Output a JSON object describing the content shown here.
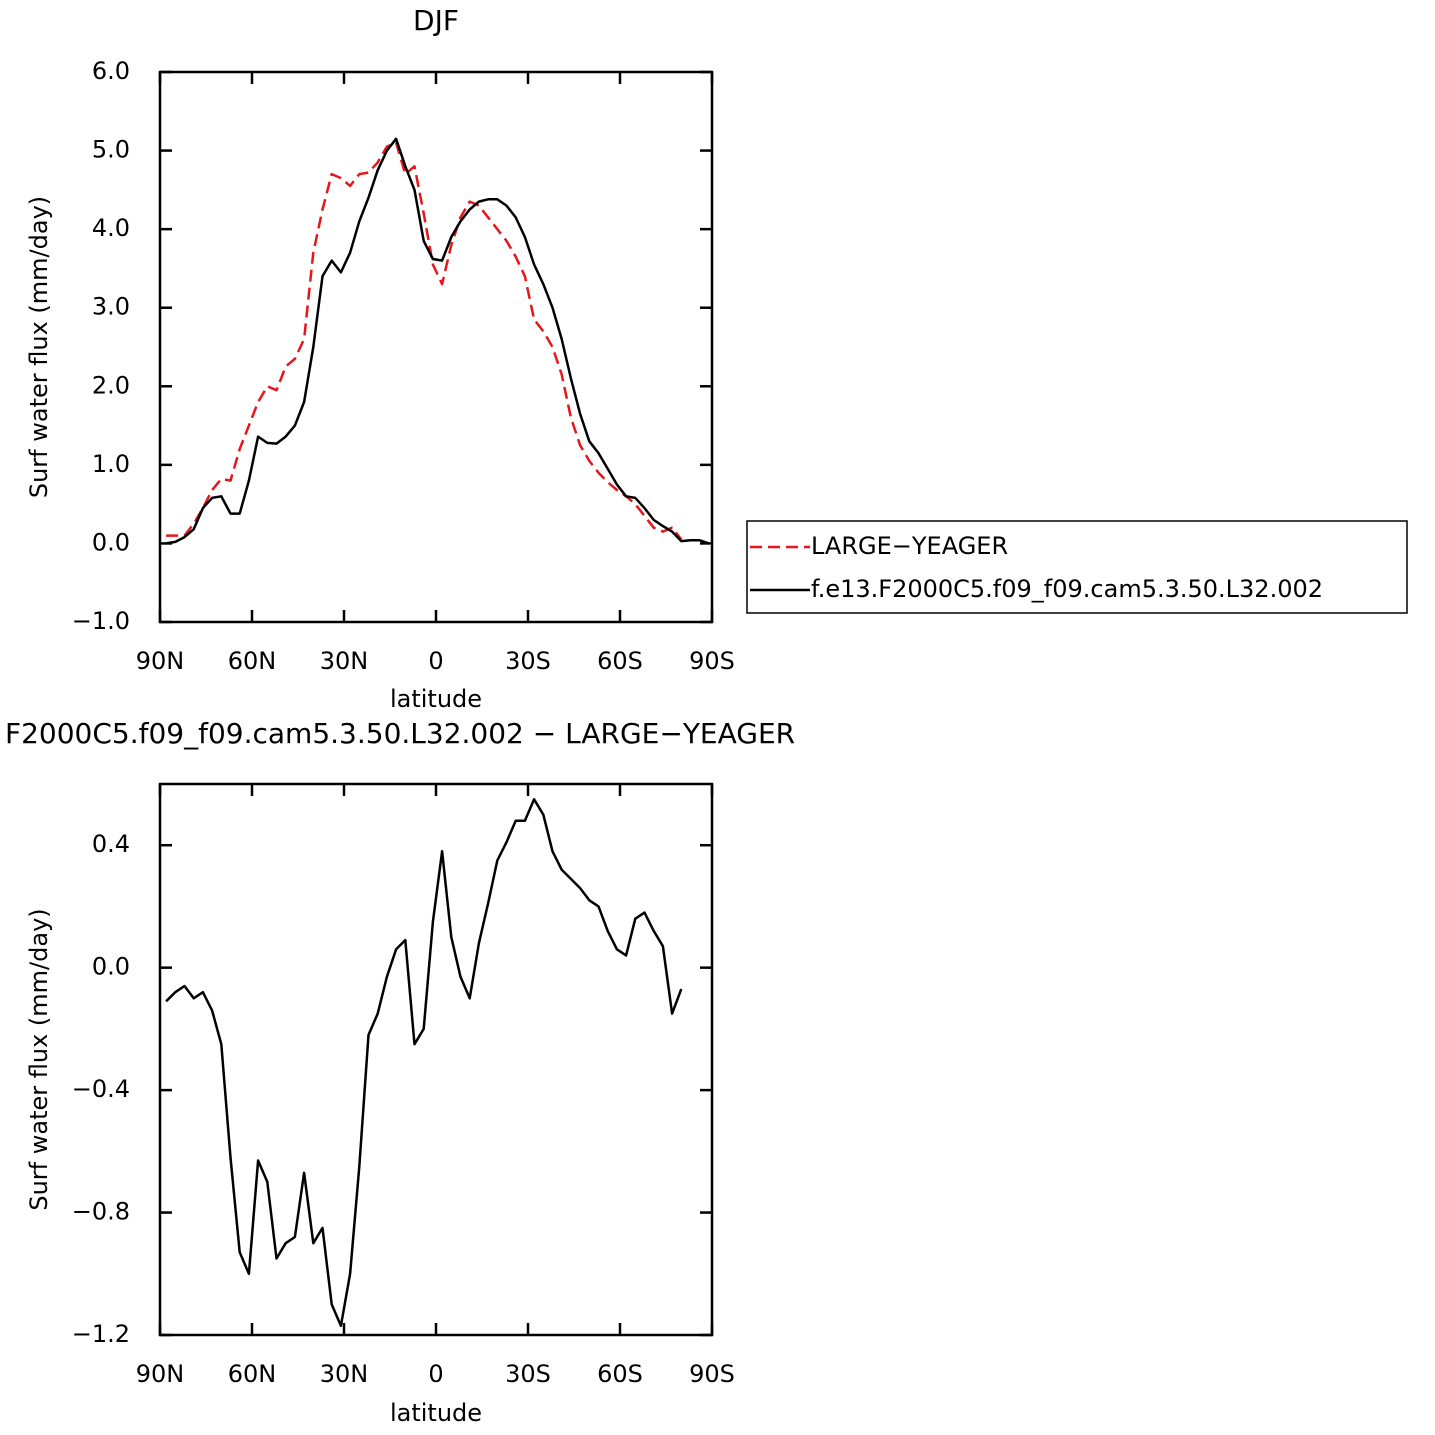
{
  "chart_data": [
    {
      "type": "line",
      "title": "DJF",
      "xlabel": "latitude",
      "ylabel": "Surf water flux (mm/day)",
      "x": [
        88,
        85,
        82,
        79,
        76,
        73,
        70,
        67,
        64,
        61,
        58,
        55,
        52,
        49,
        46,
        43,
        40,
        37,
        34,
        31,
        28,
        25,
        22,
        19,
        16,
        13,
        10,
        7,
        4,
        1,
        -2,
        -5,
        -8,
        -11,
        -14,
        -17,
        -20,
        -23,
        -26,
        -29,
        -32,
        -35,
        -38,
        -41,
        -44,
        -47,
        -50,
        -53,
        -56,
        -59,
        -62,
        -65,
        -68,
        -71,
        -74,
        -77,
        -80,
        -83,
        -86,
        -89
      ],
      "series": [
        {
          "name": "LARGE−YEAGER",
          "color": "#e8161b",
          "linestyle": "dashed",
          "values": [
            0.1,
            0.1,
            0.1,
            0.25,
            0.45,
            0.68,
            0.82,
            0.8,
            1.2,
            1.5,
            1.8,
            2.0,
            1.95,
            2.25,
            2.35,
            2.6,
            3.7,
            4.25,
            4.7,
            4.65,
            4.55,
            4.7,
            4.72,
            4.85,
            5.05,
            5.1,
            4.7,
            4.8,
            4.2,
            3.55,
            3.3,
            3.8,
            4.15,
            4.35,
            4.3,
            4.15,
            4.0,
            3.85,
            3.65,
            3.4,
            2.85,
            2.7,
            2.5,
            2.15,
            1.6,
            1.25,
            1.05,
            0.9,
            0.78,
            0.68,
            0.6,
            0.5,
            0.35,
            0.2,
            0.15,
            0.2,
            0.05,
            null,
            null,
            null
          ]
        },
        {
          "name": "f.e13.F2000C5.f09_f09.cam5.3.50.L32.002",
          "color": "#000000",
          "linestyle": "solid",
          "values": [
            0.0,
            0.02,
            0.08,
            0.18,
            0.45,
            0.58,
            0.6,
            0.38,
            0.38,
            0.8,
            1.36,
            1.28,
            1.27,
            1.36,
            1.5,
            1.8,
            2.5,
            3.4,
            3.6,
            3.45,
            3.7,
            4.1,
            4.4,
            4.75,
            5.0,
            5.15,
            4.8,
            4.5,
            3.85,
            3.62,
            3.6,
            3.9,
            4.1,
            4.25,
            4.35,
            4.38,
            4.38,
            4.3,
            4.15,
            3.9,
            3.55,
            3.3,
            3.0,
            2.6,
            2.1,
            1.65,
            1.3,
            1.15,
            0.95,
            0.75,
            0.6,
            0.58,
            0.45,
            0.3,
            0.22,
            0.15,
            0.03,
            0.04,
            0.04,
            0.0
          ]
        }
      ],
      "xlim": [
        90,
        -90
      ],
      "xticks": [
        {
          "value": 90,
          "label": "90N"
        },
        {
          "value": 60,
          "label": "60N"
        },
        {
          "value": 30,
          "label": "30N"
        },
        0,
        {
          "value": -30,
          "label": "30S"
        },
        {
          "value": -60,
          "label": "60S"
        },
        {
          "value": -90,
          "label": "90S"
        }
      ],
      "ylim": [
        -1,
        6
      ],
      "yticks": [
        {
          "value": -1,
          "label": "−1.0"
        },
        {
          "value": 0,
          "label": "0.0"
        },
        {
          "value": 1,
          "label": "1.0"
        },
        {
          "value": 2,
          "label": "2.0"
        },
        {
          "value": 3,
          "label": "3.0"
        },
        {
          "value": 4,
          "label": "4.0"
        },
        {
          "value": 5,
          "label": "5.0"
        },
        {
          "value": 6,
          "label": "6.0"
        }
      ],
      "legend": "right"
    },
    {
      "type": "line",
      "title": "F2000C5.f09_f09.cam5.3.50.L32.002 − LARGE−YEAGER",
      "xlabel": "latitude",
      "ylabel": "Surf water flux (mm/day)",
      "x": [
        88,
        85,
        82,
        79,
        76,
        73,
        70,
        67,
        64,
        61,
        58,
        55,
        52,
        49,
        46,
        43,
        40,
        37,
        34,
        31,
        28,
        25,
        22,
        19,
        16,
        13,
        10,
        7,
        4,
        1,
        -2,
        -5,
        -8,
        -11,
        -14,
        -17,
        -20,
        -23,
        -26,
        -29,
        -32,
        -35,
        -38,
        -41,
        -44,
        -47,
        -50,
        -53,
        -56,
        -59,
        -62,
        -65,
        -68,
        -71,
        -74,
        -77,
        -80,
        -83,
        -86,
        -89
      ],
      "values": [
        -0.11,
        -0.08,
        -0.06,
        -0.1,
        -0.08,
        -0.14,
        -0.25,
        -0.62,
        -0.93,
        -1.0,
        -0.63,
        -0.7,
        -0.95,
        -0.9,
        -0.88,
        -0.67,
        -0.9,
        -0.85,
        -1.1,
        -1.17,
        -1.0,
        -0.65,
        -0.22,
        -0.15,
        -0.03,
        0.06,
        0.09,
        -0.25,
        -0.2,
        0.15,
        0.38,
        0.1,
        -0.03,
        -0.1,
        0.08,
        0.21,
        0.35,
        0.41,
        0.48,
        0.48,
        0.55,
        0.5,
        0.38,
        0.32,
        0.29,
        0.26,
        0.22,
        0.2,
        0.12,
        0.06,
        0.04,
        0.16,
        0.18,
        0.12,
        0.07,
        -0.15,
        -0.07,
        null,
        null,
        null
      ],
      "color": "#000000",
      "xlim": [
        90,
        -90
      ],
      "xticks": [
        {
          "value": 90,
          "label": "90N"
        },
        {
          "value": 60,
          "label": "60N"
        },
        {
          "value": 30,
          "label": "30N"
        },
        0,
        {
          "value": -30,
          "label": "30S"
        },
        {
          "value": -60,
          "label": "60S"
        },
        {
          "value": -90,
          "label": "90S"
        }
      ],
      "ylim": [
        -1.2,
        0.6
      ],
      "yticks": [
        {
          "value": -1.2,
          "label": "−1.2"
        },
        {
          "value": -0.8,
          "label": "−0.8"
        },
        {
          "value": -0.4,
          "label": "−0.4"
        },
        {
          "value": 0,
          "label": "0.0"
        },
        {
          "value": 0.4,
          "label": "0.4"
        }
      ]
    }
  ]
}
